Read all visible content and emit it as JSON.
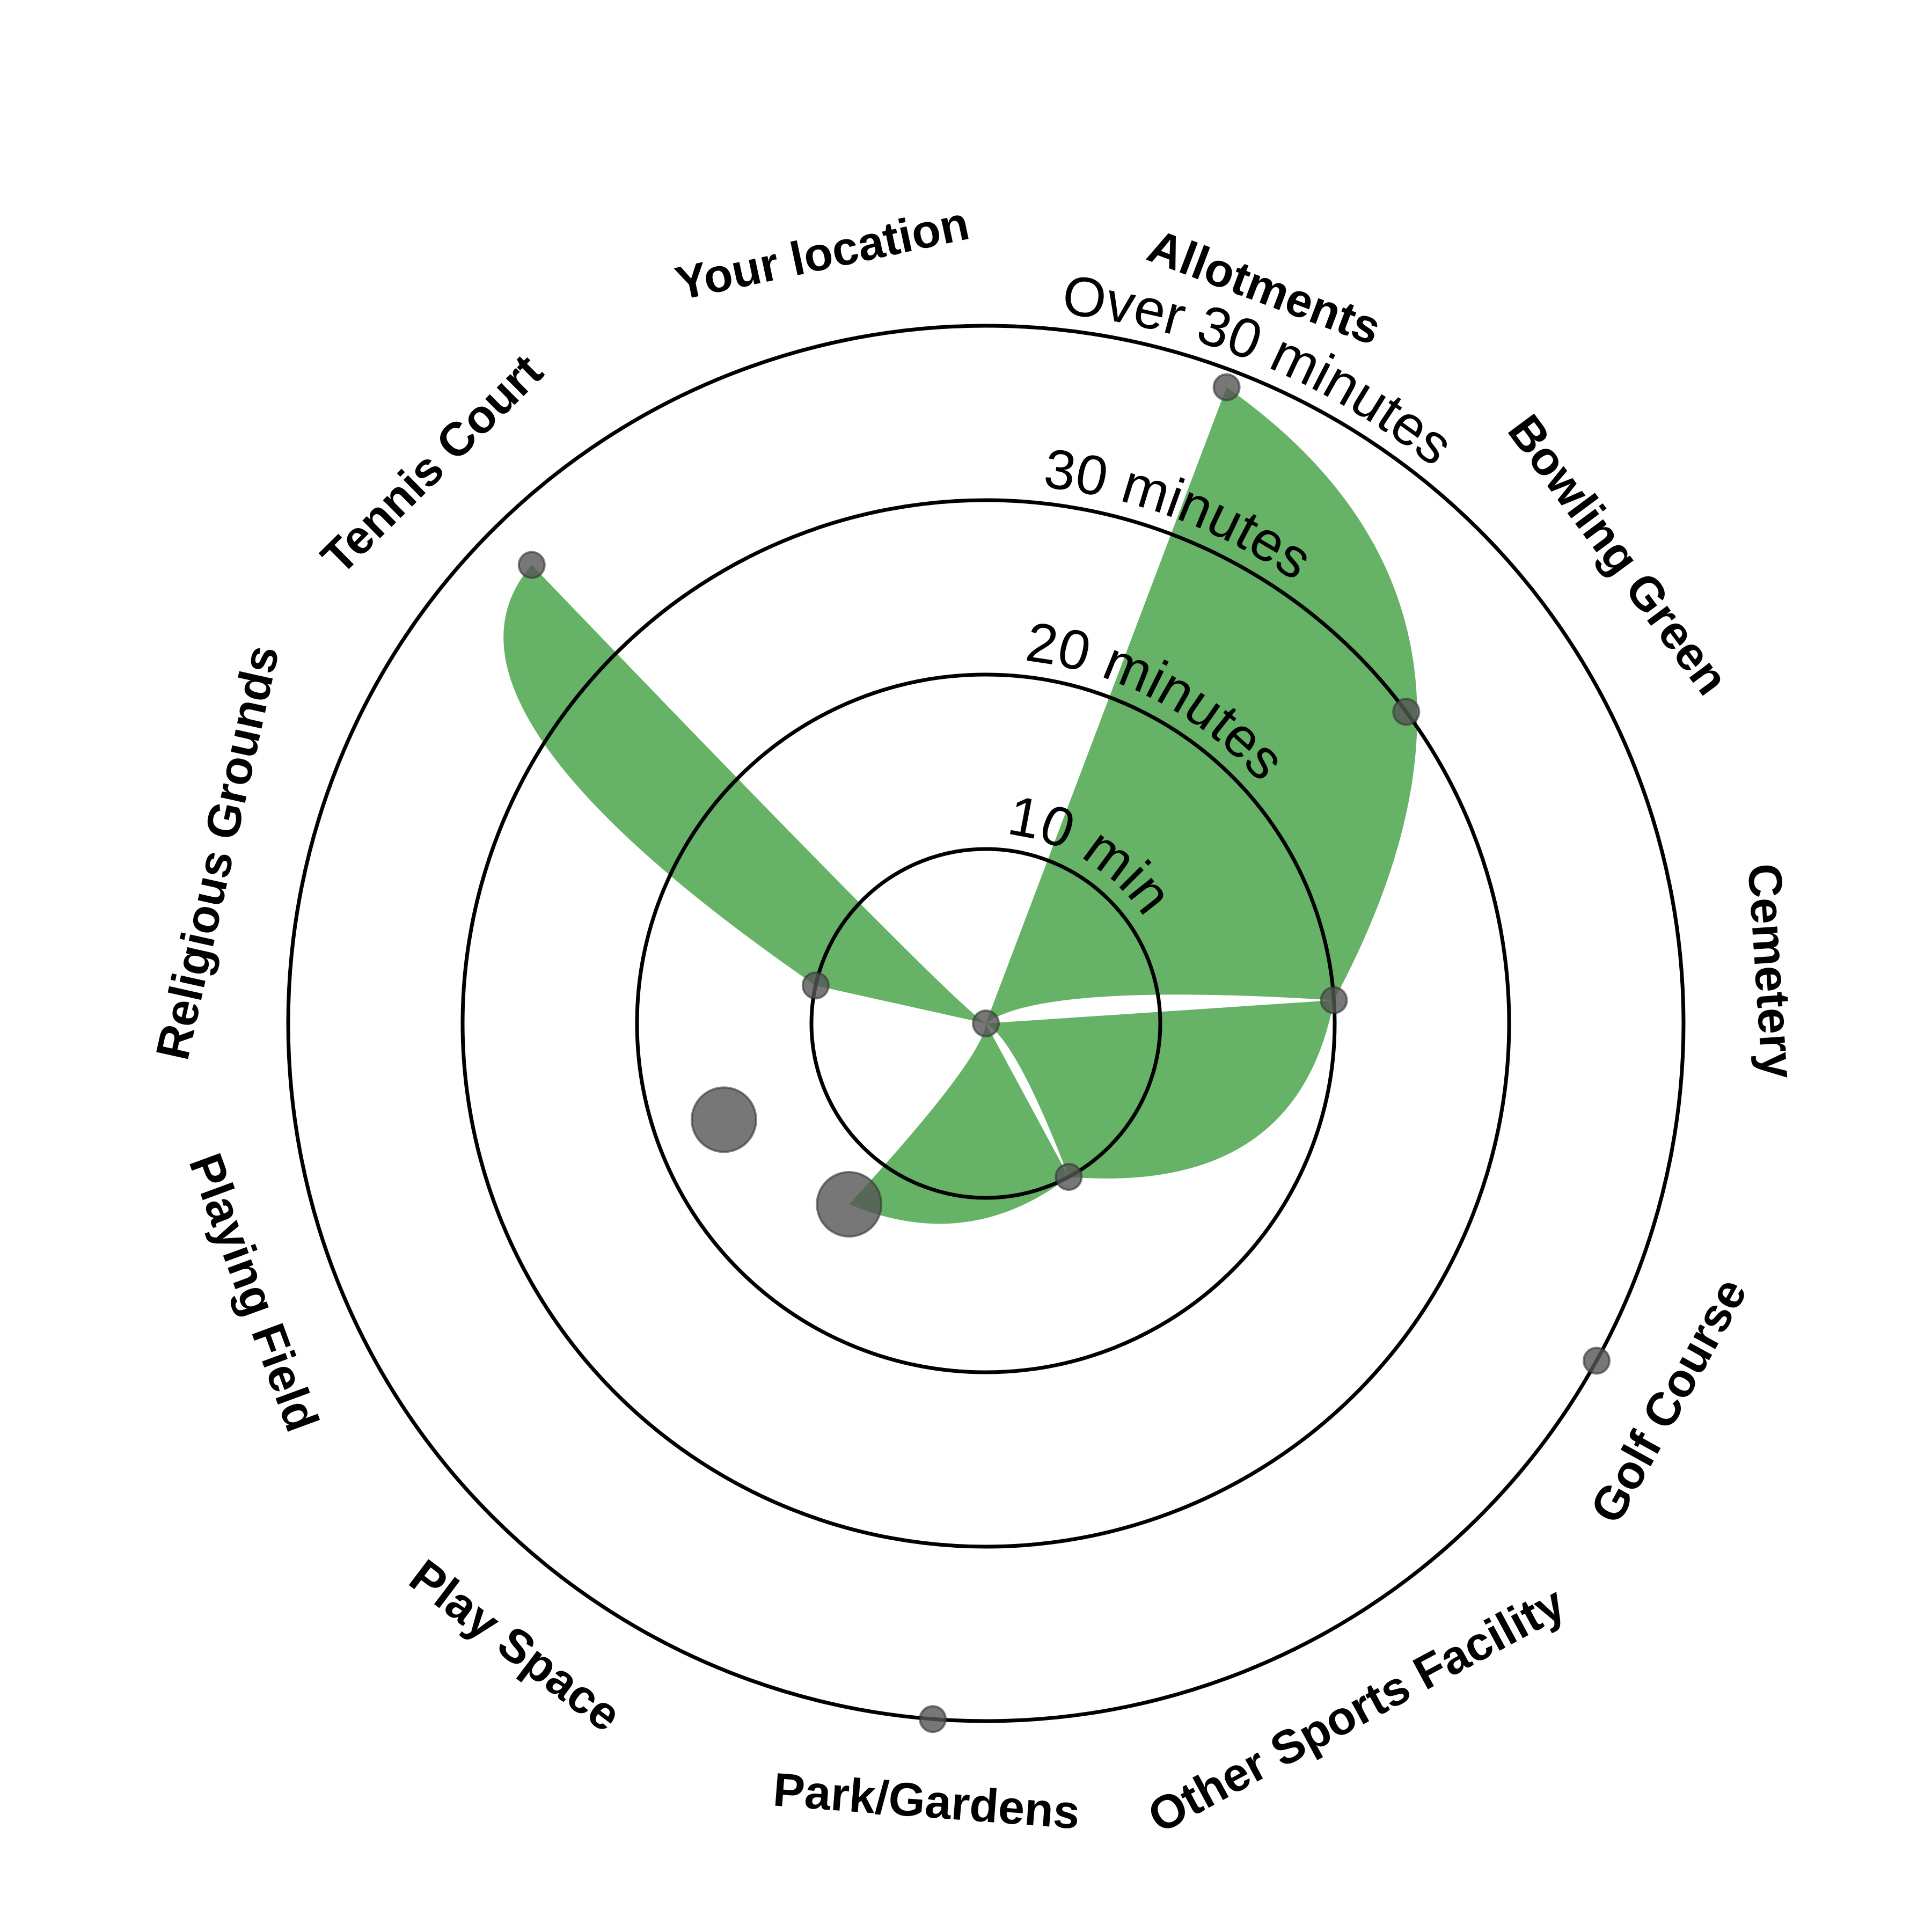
{
  "colors": {
    "petal": "#66b266",
    "point": "#555555",
    "ring": "#000000"
  },
  "chart_data": {
    "type": "radial-petal",
    "center_label": "Your location",
    "categories": [
      "Allotments",
      "Bowling Green",
      "Cemetery",
      "Golf Course",
      "Other Sports Facility",
      "Park/Gardens",
      "Play Space",
      "Playing Field",
      "Religious Grounds",
      "Tennis Court"
    ],
    "ring_labels": [
      "10 minutes",
      "20 minutes",
      "30 minutes",
      "Over 30 minutes"
    ],
    "ring_values": [
      10,
      20,
      30,
      40
    ],
    "rlim": [
      0,
      40
    ],
    "values": [
      39,
      30,
      20,
      40,
      10,
      40,
      13,
      16,
      10,
      37
    ],
    "point_sizes": [
      1,
      1,
      1,
      1,
      1,
      1,
      2.5,
      2.5,
      1,
      1
    ],
    "petals": [
      {
        "from": "Allotments",
        "to": "Cemetery"
      },
      {
        "from": "Cemetery",
        "to": "Other Sports Facility"
      },
      {
        "from": "Other Sports Facility",
        "to": "Play Space"
      },
      {
        "from": "Religious Grounds",
        "to": "Tennis Court"
      }
    ]
  }
}
